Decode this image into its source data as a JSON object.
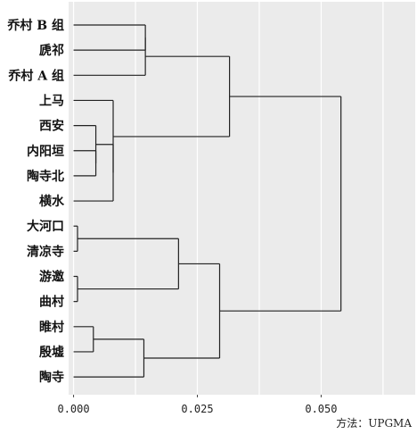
{
  "chart_data": {
    "type": "dendrogram",
    "method_note": "方法：UPGMA",
    "leaves": [
      "乔村 B 组",
      "虒祁",
      "乔村 A 组",
      "上马",
      "西安",
      "内阳垣",
      "陶寺北",
      "横水",
      "大河口",
      "清凉寺",
      "游邀",
      "曲村",
      "睢村",
      "殷墟",
      "陶寺"
    ],
    "xaxis": {
      "ticks": [
        0.0,
        0.025,
        0.05
      ],
      "tick_labels": [
        "0.000",
        "0.025",
        "0.050"
      ],
      "xlim": [
        -0.001,
        0.069
      ]
    },
    "grid": true,
    "colors": {
      "panel_bg": "#ebebeb",
      "grid": "#ffffff",
      "branch": "#222222",
      "text": "#111111"
    },
    "merges": [
      {
        "a": "L0",
        "b": "L1",
        "height": 0.0145
      },
      {
        "a": "M0",
        "b": "L2",
        "height": 0.0145
      },
      {
        "a": "L5",
        "b": "L6",
        "height": 0.0045
      },
      {
        "a": "L4",
        "b": "M2",
        "height": 0.0045
      },
      {
        "a": "M3",
        "b": "L7",
        "height": 0.008
      },
      {
        "a": "L3",
        "b": "M4",
        "height": 0.008
      },
      {
        "a": "M1",
        "b": "M5",
        "height": 0.0315
      },
      {
        "a": "L8",
        "b": "L9",
        "height": 0.0008
      },
      {
        "a": "L10",
        "b": "L11",
        "height": 0.0008
      },
      {
        "a": "M7",
        "b": "M8",
        "height": 0.0212
      },
      {
        "a": "L12",
        "b": "L13",
        "height": 0.004
      },
      {
        "a": "M10",
        "b": "L14",
        "height": 0.0142
      },
      {
        "a": "M9",
        "b": "M11",
        "height": 0.0295
      },
      {
        "a": "M6",
        "b": "M12",
        "height": 0.054
      }
    ]
  }
}
